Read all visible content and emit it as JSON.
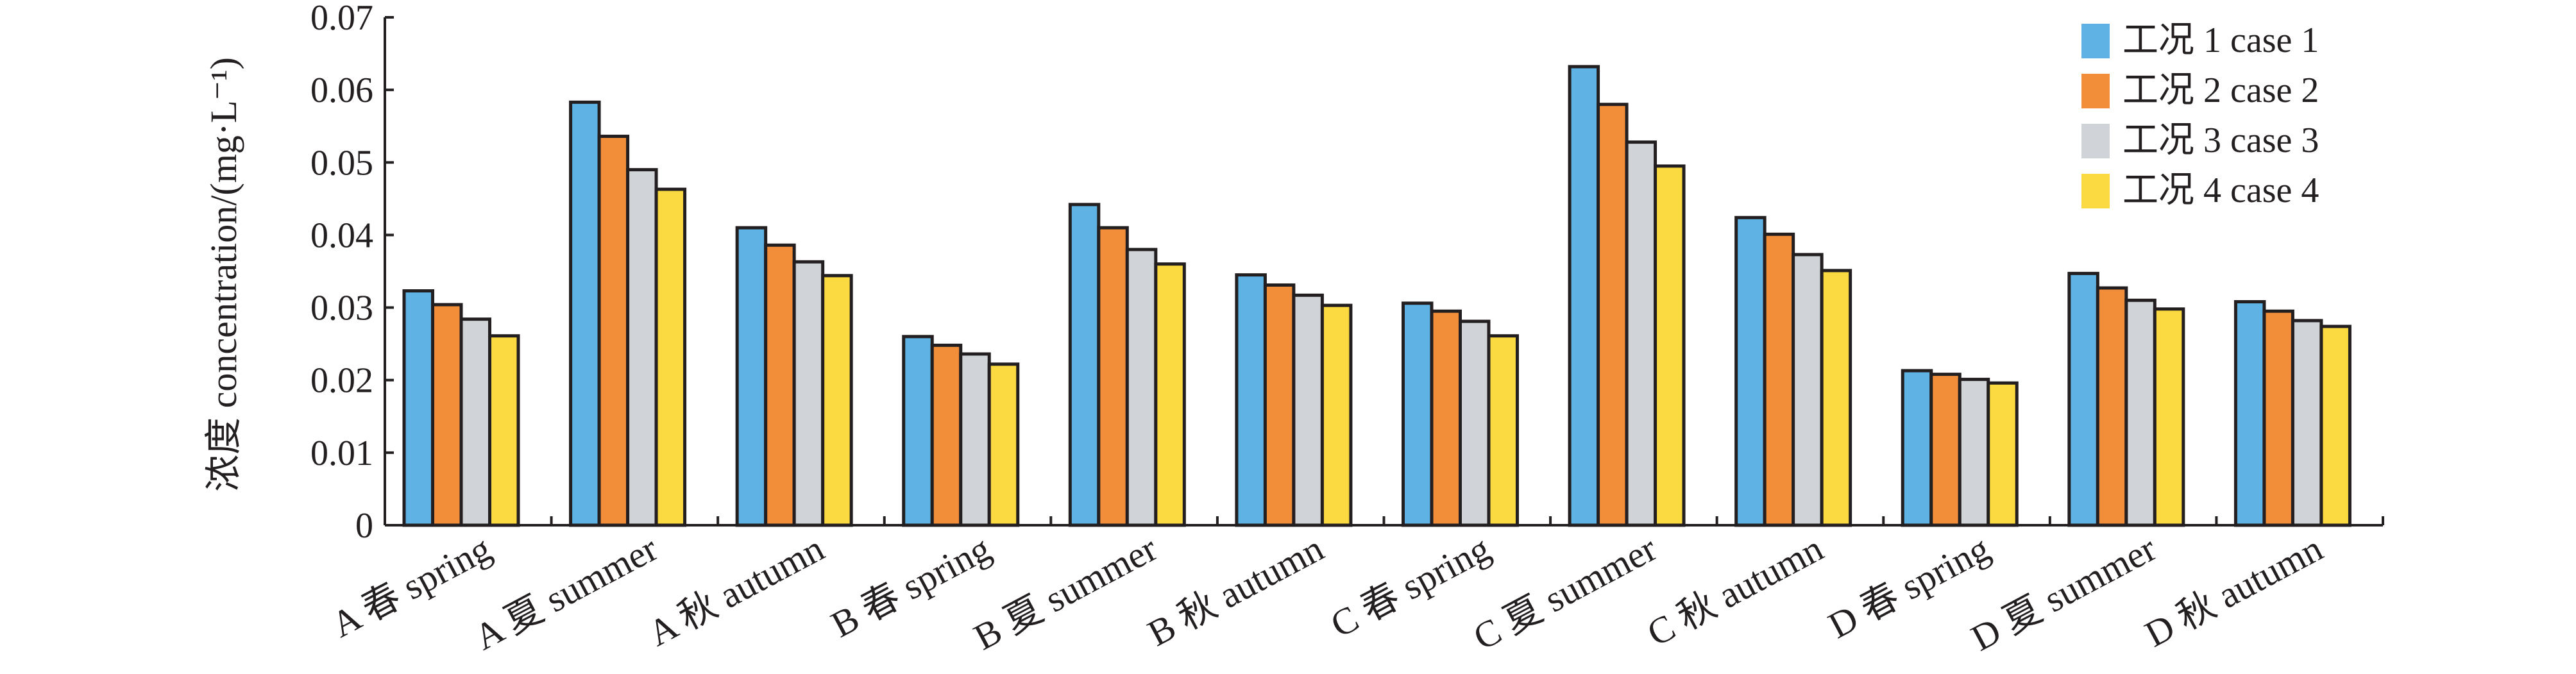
{
  "chart_data": {
    "type": "bar",
    "title": "",
    "xlabel": "",
    "ylabel": "浓度 concentration/(mg·L⁻¹)",
    "ylim": [
      0,
      0.07
    ],
    "yticks": [
      "0",
      "0.01",
      "0.02",
      "0.03",
      "0.04",
      "0.05",
      "0.06",
      "0.07"
    ],
    "grid": false,
    "legend_position": "top-right",
    "categories": [
      "A 春 spring",
      "A 夏 summer",
      "A 秋 autumn",
      "B 春 spring",
      "B 夏 summer",
      "B 秋 autumn",
      "C 春 spring",
      "C 夏 summer",
      "C 秋 autumn",
      "D 春 spring",
      "D 夏 summer",
      "D 秋 autumn"
    ],
    "series": [
      {
        "name": "工况 1 case 1",
        "color": "#5eb3e4",
        "values": [
          0.0323,
          0.0583,
          0.041,
          0.026,
          0.0442,
          0.0345,
          0.0306,
          0.0632,
          0.0424,
          0.0213,
          0.0347,
          0.0308
        ]
      },
      {
        "name": "工况 2 case 2",
        "color": "#f28e3a",
        "values": [
          0.0304,
          0.0536,
          0.0386,
          0.0248,
          0.041,
          0.0331,
          0.0295,
          0.058,
          0.0401,
          0.0208,
          0.0327,
          0.0295
        ]
      },
      {
        "name": "工况 3 case 3",
        "color": "#d0d4d8",
        "values": [
          0.0284,
          0.049,
          0.0363,
          0.0236,
          0.038,
          0.0317,
          0.0281,
          0.0528,
          0.0373,
          0.0201,
          0.031,
          0.0282
        ]
      },
      {
        "name": "工况 4 case 4",
        "color": "#fbd940",
        "values": [
          0.0261,
          0.0463,
          0.0344,
          0.0222,
          0.036,
          0.0303,
          0.0261,
          0.0495,
          0.0351,
          0.0196,
          0.0298,
          0.0274
        ]
      }
    ]
  }
}
